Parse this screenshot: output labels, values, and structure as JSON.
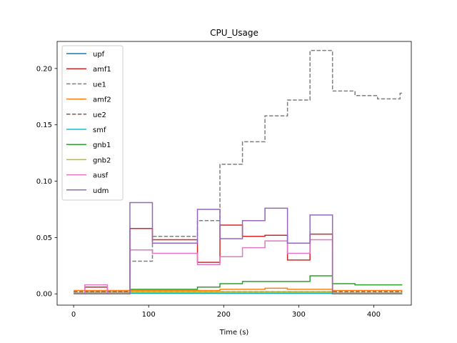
{
  "chart_data": {
    "type": "line",
    "title": "CPU_Usage",
    "xlabel": "Time (s)",
    "ylabel": "",
    "xlim": [
      -22,
      450
    ],
    "ylim": [
      -0.01,
      0.224
    ],
    "xticks": [
      0,
      100,
      200,
      300,
      400
    ],
    "yticks": [
      0.0,
      0.05,
      0.1,
      0.15,
      0.2
    ],
    "xtick_labels": [
      "0",
      "100",
      "200",
      "300",
      "400"
    ],
    "ytick_labels": [
      "0.00",
      "0.05",
      "0.10",
      "0.15",
      "0.20"
    ],
    "grid": false,
    "legend_position": "top-left",
    "x": [
      0,
      15,
      45,
      75,
      105,
      135,
      165,
      195,
      225,
      255,
      285,
      315,
      345,
      375,
      405,
      435
    ],
    "series": [
      {
        "name": "upf",
        "color": "#1f77b4",
        "dash": "solid",
        "values": [
          0.0005,
          0.0005,
          0.0005,
          0.0005,
          0.0005,
          0.0005,
          0.0005,
          0.0005,
          0.0005,
          0.0005,
          0.0005,
          0.0005,
          0.0005,
          0.0005,
          0.0005,
          0.0005
        ]
      },
      {
        "name": "amf1",
        "color": "#d62728",
        "dash": "solid",
        "values": [
          0.0,
          0.006,
          0.0,
          0.058,
          0.048,
          0.048,
          0.028,
          0.061,
          0.051,
          0.052,
          0.03,
          0.053,
          0.0,
          0.0,
          0.0,
          0.0
        ]
      },
      {
        "name": "ue1",
        "color": "#7f7f7f",
        "dash": "dashed",
        "values": [
          0.001,
          0.002,
          0.002,
          0.029,
          0.051,
          0.051,
          0.065,
          0.115,
          0.135,
          0.158,
          0.172,
          0.216,
          0.18,
          0.176,
          0.173,
          0.178
        ]
      },
      {
        "name": "amf2",
        "color": "#ff7f0e",
        "dash": "solid",
        "values": [
          0.003,
          0.003,
          0.003,
          0.003,
          0.003,
          0.003,
          0.003,
          0.004,
          0.004,
          0.005,
          0.004,
          0.004,
          0.003,
          0.003,
          0.003,
          0.003
        ]
      },
      {
        "name": "ue2",
        "color": "#8c564b",
        "dash": "dashed",
        "values": [
          0.002,
          0.002,
          0.002,
          0.002,
          0.002,
          0.002,
          0.002,
          0.002,
          0.002,
          0.002,
          0.002,
          0.002,
          0.002,
          0.002,
          0.002,
          0.002
        ]
      },
      {
        "name": "smf",
        "color": "#17becf",
        "dash": "solid",
        "values": [
          0.0005,
          0.0005,
          0.0005,
          0.0008,
          0.0008,
          0.0008,
          0.0008,
          0.0008,
          0.0008,
          0.0008,
          0.0008,
          0.0008,
          0.0005,
          0.0005,
          0.0005,
          0.0005
        ]
      },
      {
        "name": "gnb1",
        "color": "#2ca02c",
        "dash": "solid",
        "values": [
          0.0,
          0.0,
          0.0,
          0.004,
          0.004,
          0.004,
          0.006,
          0.009,
          0.011,
          0.011,
          0.011,
          0.016,
          0.009,
          0.008,
          0.008,
          0.008
        ]
      },
      {
        "name": "gnb2",
        "color": "#bcbd22",
        "dash": "solid",
        "values": [
          0.001,
          0.001,
          0.001,
          0.002,
          0.002,
          0.002,
          0.002,
          0.002,
          0.002,
          0.002,
          0.002,
          0.002,
          0.001,
          0.001,
          0.001,
          0.001
        ]
      },
      {
        "name": "ausf",
        "color": "#e377c2",
        "dash": "solid",
        "values": [
          0.0,
          0.008,
          0.0,
          0.039,
          0.036,
          0.036,
          0.026,
          0.033,
          0.041,
          0.047,
          0.036,
          0.048,
          0.0,
          0.0,
          0.0,
          0.0
        ]
      },
      {
        "name": "udm",
        "color": "#9467bd",
        "dash": "solid",
        "values": [
          0.0,
          0.0,
          0.0,
          0.081,
          0.045,
          0.045,
          0.075,
          0.049,
          0.065,
          0.076,
          0.045,
          0.07,
          0.0,
          0.0,
          0.0,
          0.0
        ]
      }
    ]
  }
}
